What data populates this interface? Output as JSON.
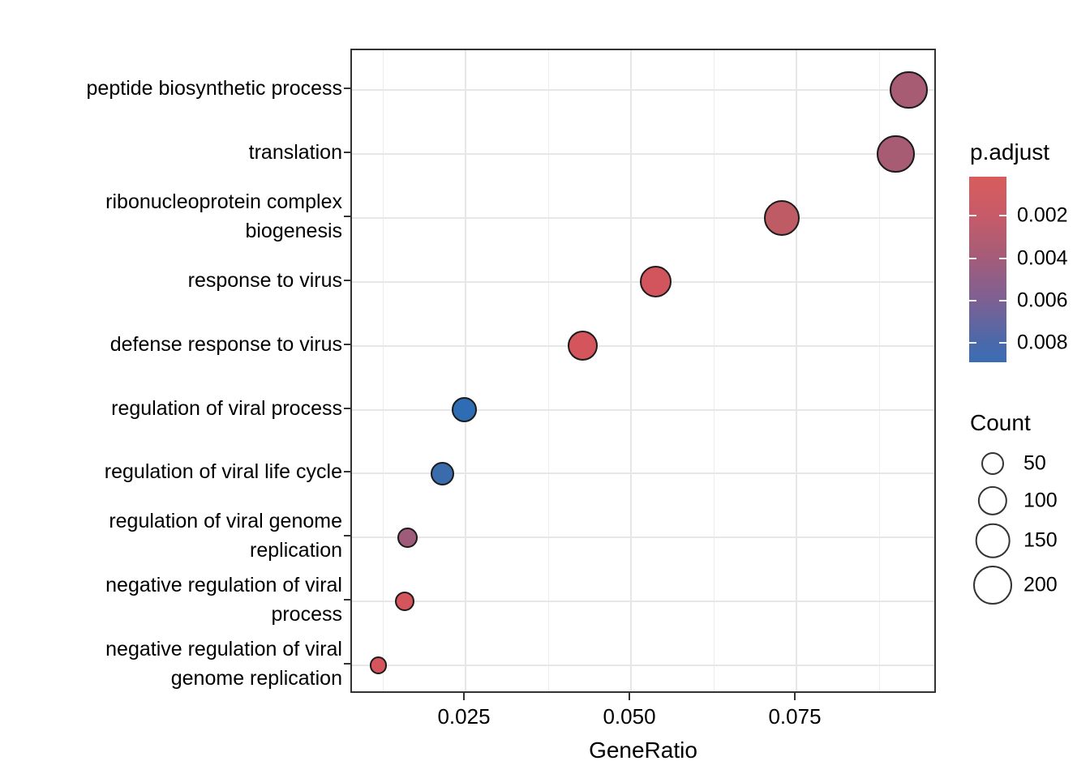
{
  "chart_data": {
    "type": "scatter",
    "subtype": "bubble-dotplot (GO enrichment)",
    "title": "",
    "xlabel": "GeneRatio",
    "ylabel": "",
    "xlim": [
      0.0078,
      0.0965
    ],
    "grid": "on",
    "x_ticks": [
      0.025,
      0.05,
      0.075
    ],
    "x_tick_labels": [
      "0.025",
      "0.050",
      "0.075"
    ],
    "x_minor_ticks": [
      0.0125,
      0.0375,
      0.0625,
      0.0875
    ],
    "categories_top_to_bottom": [
      "peptide biosynthetic process",
      "translation",
      "ribonucleoprotein complex biogenesis",
      "response to virus",
      "defense response to virus",
      "regulation of viral process",
      "regulation of viral life cycle",
      "regulation of viral genome replication",
      "negative regulation of viral process",
      "negative regulation of viral genome replication"
    ],
    "category_label_lines": [
      [
        "peptide biosynthetic process"
      ],
      [
        "translation"
      ],
      [
        "ribonucleoprotein complex",
        "biogenesis"
      ],
      [
        "response to virus"
      ],
      [
        "defense response to virus"
      ],
      [
        "regulation of viral process"
      ],
      [
        "regulation of viral life cycle"
      ],
      [
        "regulation of viral genome",
        "replication"
      ],
      [
        "negative regulation of viral",
        "process"
      ],
      [
        "negative regulation of viral",
        "genome replication"
      ]
    ],
    "points": [
      {
        "label": "peptide biosynthetic process",
        "gene_ratio": 0.092,
        "count": 190,
        "p_adjust": 0.0038,
        "color": "#a75c73"
      },
      {
        "label": "translation",
        "gene_ratio": 0.09,
        "count": 185,
        "p_adjust": 0.0038,
        "color": "#a75c73"
      },
      {
        "label": "ribonucleoprotein complex biogenesis",
        "gene_ratio": 0.0728,
        "count": 165,
        "p_adjust": 0.0021,
        "color": "#bf5b64"
      },
      {
        "label": "response to virus",
        "gene_ratio": 0.0537,
        "count": 120,
        "p_adjust": 0.0009,
        "color": "#d2545c"
      },
      {
        "label": "defense response to virus",
        "gene_ratio": 0.0427,
        "count": 105,
        "p_adjust": 0.0007,
        "color": "#d4555b"
      },
      {
        "label": "regulation of viral process",
        "gene_ratio": 0.0248,
        "count": 70,
        "p_adjust": 0.0086,
        "color": "#2e6db4"
      },
      {
        "label": "regulation of viral life cycle",
        "gene_ratio": 0.0215,
        "count": 58,
        "p_adjust": 0.008,
        "color": "#3a6cac"
      },
      {
        "label": "regulation of viral genome replication",
        "gene_ratio": 0.0162,
        "count": 35,
        "p_adjust": 0.0046,
        "color": "#9f5c7a"
      },
      {
        "label": "negative regulation of viral process",
        "gene_ratio": 0.0158,
        "count": 32,
        "p_adjust": 0.0007,
        "color": "#d4555b"
      },
      {
        "label": "negative regulation of viral genome replication",
        "gene_ratio": 0.0118,
        "count": 22,
        "p_adjust": 0.0008,
        "color": "#d4555b"
      }
    ],
    "legend": {
      "p_adjust": {
        "title": "p.adjust",
        "tick_labels": [
          "0.002",
          "0.004",
          "0.006",
          "0.008"
        ],
        "tick_values": [
          0.002,
          0.004,
          0.006,
          0.008
        ],
        "top_color": "#d85c5c",
        "bottom_color": "#3a6db6",
        "position": "right"
      },
      "count": {
        "title": "Count",
        "entries": [
          {
            "label": "50",
            "value": 50
          },
          {
            "label": "100",
            "value": 100
          },
          {
            "label": "150",
            "value": 150
          },
          {
            "label": "200",
            "value": 200
          }
        ],
        "position": "right"
      }
    }
  }
}
